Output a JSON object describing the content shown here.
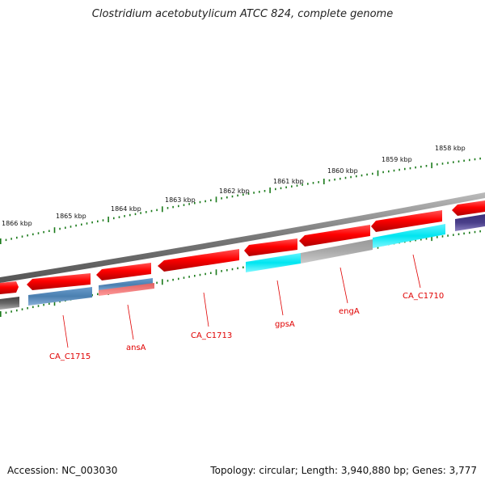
{
  "title": "Clostridium acetobutylicum ATCC 824, complete genome",
  "accession": "Accession: NC_003030",
  "topology": "Topology: circular; Length: 3,940,880 bp; Genes: 3,777",
  "kbp_ticks": [
    "1866 kbp",
    "1865 kbp",
    "1864 kbp",
    "1863 kbp",
    "1862 kbp",
    "1861 kbp",
    "1860 kbp",
    "1859 kbp",
    "1858 kbp"
  ],
  "gene_labels": [
    "CA_C1715",
    "ansA",
    "CA_C1713",
    "gpsA",
    "engA",
    "CA_C1710"
  ],
  "colors": {
    "forward": "#ff0000",
    "reverse_blue": "#4a7fb0",
    "cyan": "#00e5f0",
    "gray": "#aaaaaa",
    "dark_gray": "#555555",
    "purple": "#4a3f8a",
    "tick_green": "#1a7a1a",
    "label_red": "#e00000"
  }
}
